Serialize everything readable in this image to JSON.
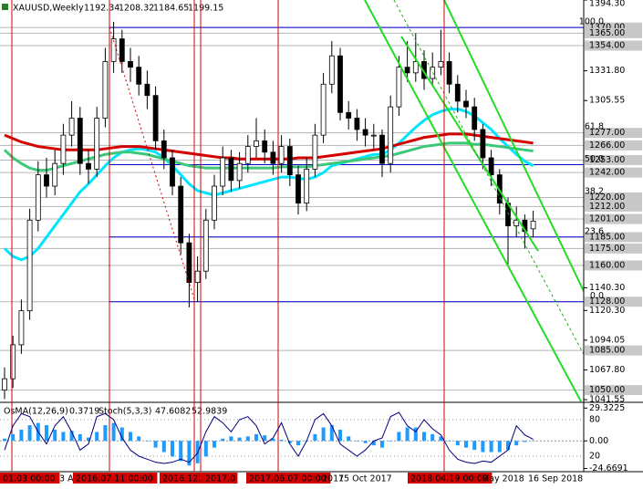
{
  "chart_data": {
    "type": "candlestick",
    "title": "XAUUSD,Weekly",
    "open": [
      1050,
      1060,
      1090,
      1120,
      1200,
      1240,
      1230,
      1250,
      1275,
      1290,
      1250,
      1245,
      1290,
      1340,
      1360,
      1340,
      1335,
      1320,
      1310,
      1270,
      1255,
      1230,
      1180,
      1145,
      1155,
      1200,
      1230,
      1255,
      1235,
      1250,
      1265,
      1270,
      1260,
      1250,
      1265,
      1240,
      1215,
      1245,
      1275,
      1320,
      1345,
      1295,
      1290,
      1280,
      1275,
      1275,
      1250,
      1300,
      1335,
      1330,
      1340,
      1325,
      1335,
      1340,
      1320,
      1305,
      1300,
      1280,
      1255,
      1240,
      1215,
      1195,
      1200,
      1192.34
    ],
    "high": [
      1070,
      1098,
      1130,
      1210,
      1252,
      1255,
      1262,
      1285,
      1305,
      1300,
      1262,
      1300,
      1352,
      1375,
      1368,
      1352,
      1345,
      1332,
      1318,
      1280,
      1262,
      1238,
      1188,
      1168,
      1210,
      1240,
      1265,
      1262,
      1260,
      1275,
      1290,
      1280,
      1270,
      1275,
      1272,
      1248,
      1255,
      1285,
      1330,
      1358,
      1352,
      1305,
      1298,
      1290,
      1285,
      1280,
      1310,
      1345,
      1358,
      1365,
      1350,
      1348,
      1368,
      1348,
      1328,
      1315,
      1308,
      1285,
      1262,
      1245,
      1220,
      1212,
      1205,
      1208.32
    ],
    "low": [
      1042,
      1052,
      1082,
      1112,
      1190,
      1220,
      1222,
      1240,
      1265,
      1240,
      1232,
      1238,
      1282,
      1330,
      1330,
      1322,
      1310,
      1298,
      1262,
      1245,
      1222,
      1170,
      1123,
      1128,
      1148,
      1192,
      1222,
      1225,
      1228,
      1242,
      1255,
      1250,
      1240,
      1242,
      1230,
      1205,
      1208,
      1238,
      1268,
      1312,
      1288,
      1280,
      1270,
      1265,
      1262,
      1238,
      1242,
      1292,
      1322,
      1322,
      1315,
      1318,
      1328,
      1312,
      1295,
      1290,
      1270,
      1245,
      1230,
      1205,
      1160,
      1185,
      1175,
      1184.65
    ],
    "close": [
      1060,
      1090,
      1120,
      1200,
      1240,
      1230,
      1250,
      1275,
      1290,
      1250,
      1245,
      1290,
      1340,
      1360,
      1340,
      1335,
      1320,
      1310,
      1270,
      1255,
      1230,
      1180,
      1145,
      1155,
      1200,
      1230,
      1255,
      1235,
      1250,
      1265,
      1270,
      1260,
      1250,
      1265,
      1240,
      1215,
      1245,
      1275,
      1320,
      1345,
      1295,
      1290,
      1280,
      1275,
      1275,
      1250,
      1300,
      1335,
      1330,
      1340,
      1325,
      1335,
      1340,
      1320,
      1305,
      1300,
      1280,
      1255,
      1240,
      1215,
      1195,
      1200,
      1190,
      1199.15
    ],
    "ylim": [
      1040,
      1394.3
    ],
    "yticks": [
      {
        "value": 1394.3,
        "label": "1394.30"
      },
      {
        "value": 1331.8,
        "label": "1331.80"
      },
      {
        "value": 1305.55,
        "label": "1305.55"
      },
      {
        "value": 1140.3,
        "label": "1140.30"
      },
      {
        "value": 1120.3,
        "label": "1120.30"
      },
      {
        "value": 1094.05,
        "label": "1094.05"
      },
      {
        "value": 1067.8,
        "label": "1067.80"
      },
      {
        "value": 1041.55,
        "label": "1041.55"
      }
    ],
    "levels": [
      {
        "value": 1370,
        "label": "1370.00"
      },
      {
        "value": 1365,
        "label": "1365.00"
      },
      {
        "value": 1354,
        "label": "1354.00"
      },
      {
        "value": 1277,
        "label": "1277.00"
      },
      {
        "value": 1266,
        "label": "1266.00"
      },
      {
        "value": 1253,
        "label": "1253.00"
      },
      {
        "value": 1242,
        "label": "1242.00"
      },
      {
        "value": 1220,
        "label": "1220.00"
      },
      {
        "value": 1212,
        "label": "1212.00"
      },
      {
        "value": 1201,
        "label": "1201.00"
      },
      {
        "value": 1185,
        "label": "1185.00"
      },
      {
        "value": 1175,
        "label": "1175.00"
      },
      {
        "value": 1160,
        "label": "1160.00"
      },
      {
        "value": 1128,
        "label": "1128.00"
      },
      {
        "value": 1085,
        "label": "1085.00"
      },
      {
        "value": 1050,
        "label": "1050.00"
      }
    ],
    "fibo": {
      "high": 1370,
      "low": 1128,
      "color": "#0000cd",
      "levels": [
        {
          "value": 100,
          "label": "100.0"
        },
        {
          "value": 61.8,
          "label": "61.8"
        },
        {
          "value": 50,
          "label": "50.0"
        },
        {
          "value": 38.2,
          "label": "38.2"
        },
        {
          "value": 23.6,
          "label": "23.6"
        },
        {
          "value": 0,
          "label": "0.0"
        }
      ]
    },
    "ma": [
      {
        "color": "#00e5ff",
        "values": [
          1175,
          1168,
          1165,
          1168,
          1175,
          1185,
          1195,
          1205,
          1215,
          1225,
          1232,
          1240,
          1248,
          1255,
          1260,
          1262,
          1263,
          1262,
          1260,
          1255,
          1248,
          1240,
          1232,
          1226,
          1224,
          1222,
          1224,
          1226,
          1228,
          1230,
          1232,
          1234,
          1236,
          1238,
          1238,
          1237,
          1236,
          1238,
          1242,
          1248,
          1250,
          1252,
          1254,
          1256,
          1258,
          1258,
          1262,
          1268,
          1275,
          1282,
          1288,
          1293,
          1296,
          1298,
          1298,
          1296,
          1292,
          1286,
          1280,
          1272,
          1265,
          1258,
          1252,
          1248
        ]
      },
      {
        "color": "#3cc878",
        "values": [
          1262,
          1255,
          1250,
          1246,
          1244,
          1244,
          1246,
          1248,
          1250,
          1252,
          1254,
          1256,
          1258,
          1259,
          1260,
          1260,
          1259,
          1258,
          1256,
          1254,
          1252,
          1250,
          1248,
          1247,
          1246,
          1246,
          1246,
          1246,
          1246,
          1246,
          1246,
          1246,
          1246,
          1247,
          1247,
          1247,
          1247,
          1248,
          1249,
          1250,
          1251,
          1252,
          1253,
          1254,
          1255,
          1256,
          1257,
          1259,
          1261,
          1263,
          1265,
          1266,
          1267,
          1268,
          1268,
          1268,
          1267,
          1267,
          1266,
          1265,
          1264,
          1263,
          1262,
          1261
        ]
      },
      {
        "color": "#d40000",
        "values": [
          1275,
          1272,
          1269,
          1267,
          1265,
          1264,
          1263,
          1262,
          1262,
          1262,
          1262,
          1262,
          1263,
          1264,
          1265,
          1265,
          1265,
          1264,
          1263,
          1262,
          1261,
          1260,
          1259,
          1258,
          1257,
          1256,
          1255,
          1255,
          1254,
          1254,
          1254,
          1254,
          1254,
          1254,
          1254,
          1255,
          1255,
          1255,
          1256,
          1257,
          1258,
          1259,
          1260,
          1261,
          1262,
          1263,
          1265,
          1267,
          1269,
          1271,
          1273,
          1274,
          1275,
          1276,
          1276,
          1276,
          1275,
          1274,
          1273,
          1272,
          1271,
          1270,
          1269,
          1268
        ]
      }
    ],
    "dates": [
      "01.03 00:00",
      "3 A",
      "2016.07.11 00:00",
      "2016.12.2",
      "2017.0",
      "2017.06.07 00:00",
      "2017",
      "15 Oct 2017",
      "2018.04.19 00:00",
      "May 2018",
      "16 Sep 2018"
    ],
    "indicator": {
      "osma_name": "OsMA(12,26,9)",
      "osma_color": "#1e9bff",
      "osma": [
        2,
        6,
        10,
        14,
        16,
        14,
        10,
        8,
        9,
        6,
        3,
        8,
        14,
        16,
        12,
        8,
        4,
        0,
        -6,
        -10,
        -14,
        -18,
        -22,
        -20,
        -14,
        -6,
        2,
        4,
        3,
        4,
        6,
        5,
        2,
        1,
        -2,
        -4,
        0,
        6,
        12,
        14,
        10,
        4,
        0,
        -2,
        -4,
        -6,
        0,
        8,
        12,
        12,
        8,
        6,
        4,
        0,
        -4,
        -6,
        -8,
        -10,
        -10,
        -10,
        -8,
        -4,
        -1,
        0.3719
      ],
      "osma_lim": [
        -27.5,
        32
      ],
      "osma_ticks": [
        29.3225,
        {
          "value": 0,
          "label": "0.00"
        },
        -24.6691
      ],
      "stoch_name": "Stoch(5,3,3)",
      "stoch_color": "#000080",
      "stoch": [
        30,
        70,
        90,
        85,
        60,
        40,
        70,
        85,
        60,
        30,
        40,
        85,
        90,
        80,
        50,
        30,
        20,
        15,
        10,
        8,
        10,
        15,
        10,
        25,
        60,
        85,
        75,
        60,
        80,
        85,
        70,
        40,
        50,
        75,
        40,
        20,
        45,
        80,
        90,
        70,
        40,
        30,
        20,
        30,
        45,
        50,
        85,
        92,
        70,
        60,
        80,
        65,
        55,
        30,
        15,
        10,
        8,
        12,
        10,
        20,
        30,
        70,
        55,
        47.6082
      ],
      "stoch_signal_last": 52.9839,
      "stoch_lim": [
        -5.5,
        104
      ],
      "stoch_ticks": [
        80,
        20
      ]
    }
  }
}
